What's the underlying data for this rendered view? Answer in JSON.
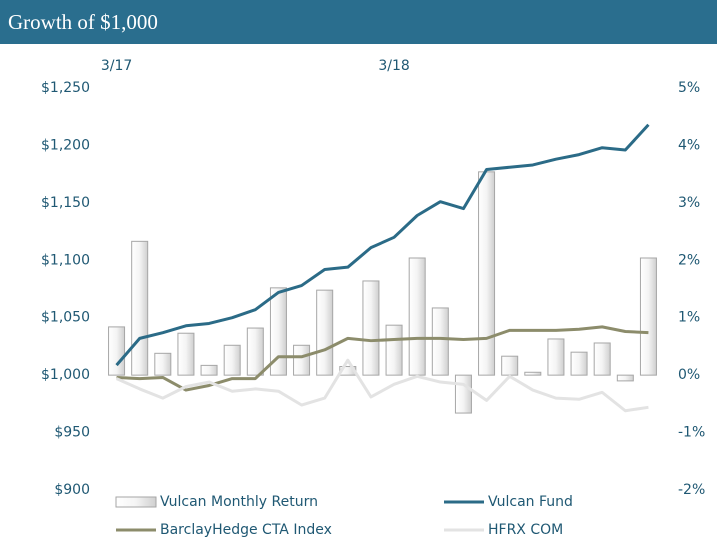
{
  "chart_data": {
    "type": "bar+line",
    "title": "Growth of $1,000",
    "categories": [
      "3/17",
      null,
      null,
      null,
      null,
      null,
      null,
      null,
      null,
      null,
      null,
      null,
      "3/18",
      null,
      null,
      null,
      null,
      null,
      null,
      null,
      null,
      null,
      null,
      null
    ],
    "series": [
      {
        "name": "Vulcan Monthly Return",
        "type": "bar",
        "axis": "y2",
        "color": "#d9d9d9",
        "values": [
          0.84,
          2.33,
          0.38,
          0.73,
          0.17,
          0.52,
          0.82,
          1.52,
          0.52,
          1.48,
          0.15,
          1.64,
          0.87,
          2.04,
          1.17,
          -0.66,
          3.54,
          0.33,
          0.05,
          0.63,
          0.4,
          0.56,
          -0.1,
          2.04
        ]
      },
      {
        "name": "Vulcan Fund",
        "type": "line",
        "color": "#2b6b87",
        "values": [
          1008.7,
          1032,
          1037,
          1043,
          1045,
          1050,
          1057,
          1072,
          1078,
          1092,
          1094,
          1111,
          1120,
          1139,
          1151,
          1145,
          1179,
          1181,
          1183,
          1188,
          1192,
          1198,
          1196,
          1218
        ]
      },
      {
        "name": "BarclayHedge CTA Index",
        "type": "line",
        "color": "#8c8c6b",
        "values": [
          998,
          997,
          998,
          987,
          991,
          997,
          997,
          1016,
          1016,
          1022,
          1032,
          1030,
          1031,
          1032,
          1032,
          1031,
          1032,
          1039,
          1039,
          1039,
          1040,
          1042,
          1038,
          1037
        ]
      },
      {
        "name": "HFRX COM",
        "type": "line",
        "color": "#e3e3e3",
        "values": [
          997,
          988,
          980,
          990,
          994,
          986,
          988,
          986,
          974,
          980,
          1013,
          981,
          992,
          999,
          994,
          992,
          978,
          999,
          987,
          980,
          979,
          985,
          969,
          972
        ]
      }
    ],
    "ylim": [
      900,
      1250
    ],
    "yticks": [
      {
        "value": 900,
        "label": "$900"
      },
      {
        "value": 950,
        "label": "$950"
      },
      {
        "value": 1000,
        "label": "$1,000"
      },
      {
        "value": 1050,
        "label": "$1,050"
      },
      {
        "value": 1100,
        "label": "$1,100"
      },
      {
        "value": 1150,
        "label": "$1,150"
      },
      {
        "value": 1200,
        "label": "$1,200"
      },
      {
        "value": 1250,
        "label": "$1,250"
      }
    ],
    "y2lim": [
      -2,
      5
    ],
    "y2ticks": [
      {
        "value": -2,
        "label": "-2%"
      },
      {
        "value": -1,
        "label": "-1%"
      },
      {
        "value": 0,
        "label": "0%"
      },
      {
        "value": 1,
        "label": "1%"
      },
      {
        "value": 2,
        "label": "2%"
      },
      {
        "value": 3,
        "label": "3%"
      },
      {
        "value": 4,
        "label": "4%"
      },
      {
        "value": 5,
        "label": "5%"
      }
    ]
  }
}
